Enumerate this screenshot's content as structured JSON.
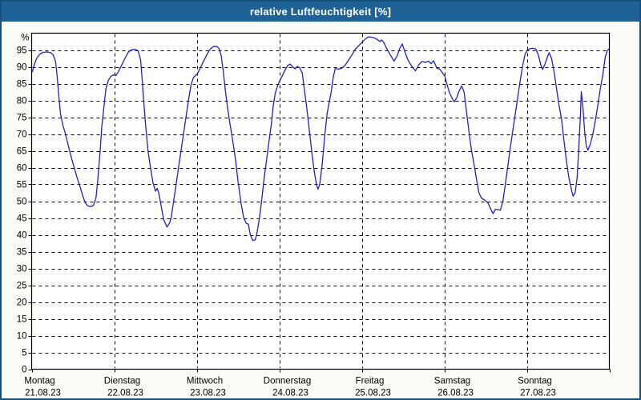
{
  "window": {
    "title": "relative Luftfeuchtigkeit [%]"
  },
  "colors": {
    "titlebar_bg": "#1e6296",
    "titlebar_text": "#ffffff",
    "outer_border": "#14527e",
    "page_bg": "#fcfcf6",
    "plot_bg": "#ffffff",
    "grid": "#000000",
    "axis": "#000000",
    "line": "#2222bb",
    "label_text": "#000000"
  },
  "chart_data": {
    "type": "line",
    "title": "relative Luftfeuchtigkeit [%]",
    "ylabel": "%",
    "ylim": [
      0,
      100
    ],
    "ytick_interval": 5,
    "ytick_labels": [
      "0",
      "5",
      "10",
      "15",
      "20",
      "25",
      "30",
      "35",
      "40",
      "45",
      "50",
      "55",
      "60",
      "65",
      "70",
      "75",
      "80",
      "85",
      "90",
      "95"
    ],
    "grid": "dashed",
    "legend_position": "none",
    "x_axis": {
      "unit": "day",
      "span_days": 7,
      "days": [
        {
          "label": "Montag",
          "date": "21.08.23"
        },
        {
          "label": "Dienstag",
          "date": "22.08.23"
        },
        {
          "label": "Mittwoch",
          "date": "23.08.23"
        },
        {
          "label": "Donnerstag",
          "date": "24.08.23"
        },
        {
          "label": "Freitag",
          "date": "25.08.23"
        },
        {
          "label": "Samstag",
          "date": "26.08.23"
        },
        {
          "label": "Sonntag",
          "date": "27.08.23"
        }
      ]
    },
    "series": [
      {
        "name": "relative Luftfeuchtigkeit [%]",
        "color": "#2222bb",
        "x_unit": "days_since_start",
        "y_unit": "percent",
        "points": [
          [
            0.01,
            88.6
          ],
          [
            0.03,
            90.5
          ],
          [
            0.06,
            92.5
          ],
          [
            0.1,
            93.8
          ],
          [
            0.14,
            94.3
          ],
          [
            0.19,
            94.4
          ],
          [
            0.23,
            94.2
          ],
          [
            0.26,
            93.6
          ],
          [
            0.29,
            91.5
          ],
          [
            0.31,
            87.0
          ],
          [
            0.33,
            81.0
          ],
          [
            0.35,
            76.0
          ],
          [
            0.38,
            72.5
          ],
          [
            0.41,
            70.0
          ],
          [
            0.44,
            67.0
          ],
          [
            0.47,
            64.0
          ],
          [
            0.51,
            60.5
          ],
          [
            0.55,
            57.0
          ],
          [
            0.59,
            54.0
          ],
          [
            0.62,
            51.5
          ],
          [
            0.65,
            49.5
          ],
          [
            0.68,
            48.6
          ],
          [
            0.72,
            48.4
          ],
          [
            0.75,
            48.8
          ],
          [
            0.78,
            51.0
          ],
          [
            0.8,
            56.0
          ],
          [
            0.83,
            65.0
          ],
          [
            0.85,
            72.0
          ],
          [
            0.88,
            79.0
          ],
          [
            0.9,
            83.5
          ],
          [
            0.93,
            86.0
          ],
          [
            0.96,
            87.2
          ],
          [
            0.99,
            87.6
          ],
          [
            1.02,
            87.4
          ],
          [
            1.05,
            88.5
          ],
          [
            1.09,
            90.5
          ],
          [
            1.13,
            92.5
          ],
          [
            1.17,
            94.3
          ],
          [
            1.21,
            95.1
          ],
          [
            1.25,
            95.2
          ],
          [
            1.29,
            94.8
          ],
          [
            1.32,
            92.0
          ],
          [
            1.34,
            86.0
          ],
          [
            1.36,
            79.0
          ],
          [
            1.38,
            73.0
          ],
          [
            1.41,
            65.0
          ],
          [
            1.44,
            60.0
          ],
          [
            1.47,
            55.5
          ],
          [
            1.5,
            53.0
          ],
          [
            1.52,
            53.8
          ],
          [
            1.54,
            52.5
          ],
          [
            1.57,
            48.5
          ],
          [
            1.6,
            44.5
          ],
          [
            1.64,
            42.3
          ],
          [
            1.67,
            43.5
          ],
          [
            1.69,
            45.0
          ],
          [
            1.72,
            50.0
          ],
          [
            1.75,
            55.0
          ],
          [
            1.78,
            60.0
          ],
          [
            1.81,
            65.0
          ],
          [
            1.84,
            70.0
          ],
          [
            1.87,
            75.0
          ],
          [
            1.9,
            80.0
          ],
          [
            1.93,
            84.5
          ],
          [
            1.96,
            86.8
          ],
          [
            1.985,
            87.4
          ],
          [
            2.01,
            88.0
          ],
          [
            2.04,
            89.5
          ],
          [
            2.08,
            91.5
          ],
          [
            2.12,
            93.5
          ],
          [
            2.16,
            95.2
          ],
          [
            2.2,
            96.0
          ],
          [
            2.24,
            96.1
          ],
          [
            2.27,
            95.5
          ],
          [
            2.295,
            93.5
          ],
          [
            2.32,
            89.0
          ],
          [
            2.345,
            83.5
          ],
          [
            2.37,
            78.5
          ],
          [
            2.4,
            73.5
          ],
          [
            2.43,
            69.0
          ],
          [
            2.47,
            62.5
          ],
          [
            2.5,
            56.0
          ],
          [
            2.54,
            49.0
          ],
          [
            2.57,
            45.0
          ],
          [
            2.6,
            43.4
          ],
          [
            2.625,
            43.2
          ],
          [
            2.65,
            40.0
          ],
          [
            2.68,
            38.3
          ],
          [
            2.71,
            38.5
          ],
          [
            2.73,
            40.5
          ],
          [
            2.76,
            45.0
          ],
          [
            2.79,
            51.0
          ],
          [
            2.82,
            57.5
          ],
          [
            2.85,
            63.0
          ],
          [
            2.88,
            68.5
          ],
          [
            2.905,
            73.0
          ],
          [
            2.925,
            78.0
          ],
          [
            2.95,
            82.0
          ],
          [
            2.975,
            84.0
          ],
          [
            3.0,
            85.5
          ],
          [
            3.03,
            87.0
          ],
          [
            3.07,
            89.0
          ],
          [
            3.1,
            90.3
          ],
          [
            3.13,
            90.8
          ],
          [
            3.16,
            90.1
          ],
          [
            3.19,
            89.4
          ],
          [
            3.22,
            90.1
          ],
          [
            3.25,
            89.7
          ],
          [
            3.28,
            88.0
          ],
          [
            3.3,
            84.0
          ],
          [
            3.33,
            78.5
          ],
          [
            3.36,
            72.0
          ],
          [
            3.39,
            65.5
          ],
          [
            3.42,
            59.5
          ],
          [
            3.45,
            55.0
          ],
          [
            3.47,
            53.6
          ],
          [
            3.49,
            55.0
          ],
          [
            3.52,
            61.0
          ],
          [
            3.55,
            69.0
          ],
          [
            3.58,
            76.0
          ],
          [
            3.61,
            80.0
          ],
          [
            3.63,
            82.6
          ],
          [
            3.655,
            87.0
          ],
          [
            3.68,
            89.5
          ],
          [
            3.72,
            89.3
          ],
          [
            3.76,
            89.6
          ],
          [
            3.8,
            90.5
          ],
          [
            3.84,
            92.0
          ],
          [
            3.88,
            93.5
          ],
          [
            3.92,
            95.2
          ],
          [
            3.96,
            96.2
          ],
          [
            4.0,
            97.2
          ],
          [
            4.04,
            98.2
          ],
          [
            4.08,
            98.9
          ],
          [
            4.12,
            98.8
          ],
          [
            4.16,
            98.5
          ],
          [
            4.19,
            98.1
          ],
          [
            4.22,
            97.5
          ],
          [
            4.24,
            98.0
          ],
          [
            4.265,
            97.3
          ],
          [
            4.29,
            96.0
          ],
          [
            4.31,
            95.1
          ],
          [
            4.35,
            93.4
          ],
          [
            4.39,
            91.7
          ],
          [
            4.43,
            93.3
          ],
          [
            4.46,
            95.5
          ],
          [
            4.49,
            96.8
          ],
          [
            4.52,
            94.6
          ],
          [
            4.56,
            92.0
          ],
          [
            4.61,
            90.0
          ],
          [
            4.65,
            88.8
          ],
          [
            4.69,
            90.6
          ],
          [
            4.73,
            91.6
          ],
          [
            4.77,
            91.3
          ],
          [
            4.81,
            91.7
          ],
          [
            4.84,
            90.9
          ],
          [
            4.87,
            91.8
          ],
          [
            4.91,
            89.6
          ],
          [
            4.945,
            89.3
          ],
          [
            4.975,
            88.3
          ],
          [
            5.005,
            87.3
          ],
          [
            5.03,
            85.0
          ],
          [
            5.06,
            82.5
          ],
          [
            5.09,
            80.8
          ],
          [
            5.12,
            79.6
          ],
          [
            5.15,
            80.8
          ],
          [
            5.18,
            82.8
          ],
          [
            5.21,
            84.3
          ],
          [
            5.24,
            82.5
          ],
          [
            5.27,
            76.5
          ],
          [
            5.3,
            70.5
          ],
          [
            5.33,
            65.0
          ],
          [
            5.36,
            61.0
          ],
          [
            5.39,
            56.5
          ],
          [
            5.42,
            52.5
          ],
          [
            5.45,
            50.9
          ],
          [
            5.49,
            50.3
          ],
          [
            5.53,
            49.5
          ],
          [
            5.56,
            47.8
          ],
          [
            5.59,
            46.3
          ],
          [
            5.62,
            47.6
          ],
          [
            5.65,
            47.5
          ],
          [
            5.68,
            47.3
          ],
          [
            5.71,
            50.0
          ],
          [
            5.74,
            55.0
          ],
          [
            5.77,
            60.5
          ],
          [
            5.8,
            66.0
          ],
          [
            5.83,
            71.0
          ],
          [
            5.86,
            76.0
          ],
          [
            5.89,
            81.0
          ],
          [
            5.92,
            86.0
          ],
          [
            5.95,
            90.5
          ],
          [
            5.98,
            93.8
          ],
          [
            6.01,
            95.0
          ],
          [
            6.04,
            95.4
          ],
          [
            6.08,
            95.5
          ],
          [
            6.11,
            95.3
          ],
          [
            6.14,
            93.5
          ],
          [
            6.17,
            90.5
          ],
          [
            6.19,
            89.2
          ],
          [
            6.22,
            90.8
          ],
          [
            6.25,
            93.0
          ],
          [
            6.27,
            94.2
          ],
          [
            6.3,
            92.5
          ],
          [
            6.33,
            88.5
          ],
          [
            6.36,
            83.5
          ],
          [
            6.39,
            78.5
          ],
          [
            6.42,
            74.5
          ],
          [
            6.45,
            68.0
          ],
          [
            6.48,
            62.0
          ],
          [
            6.51,
            57.0
          ],
          [
            6.54,
            53.5
          ],
          [
            6.56,
            51.5
          ],
          [
            6.585,
            52.5
          ],
          [
            6.61,
            57.0
          ],
          [
            6.63,
            66.0
          ],
          [
            6.65,
            76.0
          ],
          [
            6.66,
            82.6
          ],
          [
            6.68,
            78.0
          ],
          [
            6.7,
            71.0
          ],
          [
            6.72,
            66.5
          ],
          [
            6.74,
            65.2
          ],
          [
            6.77,
            67.0
          ],
          [
            6.8,
            70.0
          ],
          [
            6.83,
            74.0
          ],
          [
            6.86,
            78.5
          ],
          [
            6.89,
            83.5
          ],
          [
            6.92,
            87.5
          ],
          [
            6.95,
            93.0
          ],
          [
            6.975,
            94.8
          ],
          [
            6.995,
            95.3
          ]
        ]
      }
    ]
  }
}
